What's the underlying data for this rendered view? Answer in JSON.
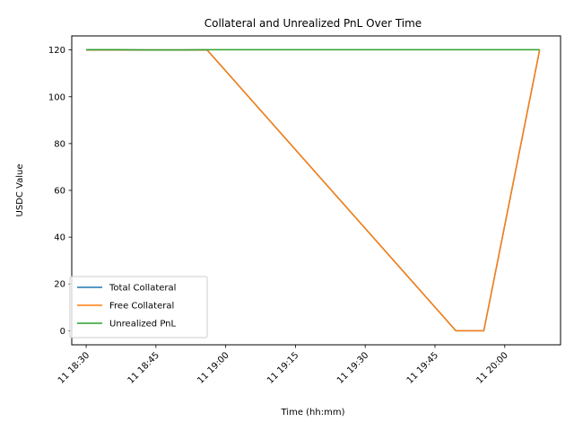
{
  "chart_data": {
    "type": "line",
    "title": "Collateral and Unrealized PnL Over Time",
    "xlabel": "Time (hh:mm)",
    "ylabel": "USDC Value",
    "x_ticks": [
      "11 18:30",
      "11 18:45",
      "11 19:00",
      "11 19:15",
      "11 19:30",
      "11 19:45",
      "11 20:00"
    ],
    "x_tick_minutes": [
      0,
      15,
      30,
      45,
      60,
      75,
      90
    ],
    "xlim_minutes": [
      -3.1,
      102
    ],
    "y_ticks": [
      0,
      20,
      40,
      60,
      80,
      100,
      120
    ],
    "ylim": [
      -6,
      126
    ],
    "legend_position": "lower left",
    "series": [
      {
        "name": "Total Collateral",
        "color": "#1f77b4",
        "x_minutes": [
          0,
          26,
          79.5,
          85.5,
          97.5
        ],
        "values": [
          120,
          120,
          0,
          0,
          120
        ]
      },
      {
        "name": "Free Collateral",
        "color": "#ff7f0e",
        "x_minutes": [
          0,
          26,
          79.5,
          85.5,
          97.5
        ],
        "values": [
          120,
          120,
          0,
          0,
          120
        ]
      },
      {
        "name": "Unrealized PnL",
        "color": "#2ca02c",
        "x_minutes": [
          0,
          7,
          13,
          20,
          26,
          40,
          60,
          80,
          97.5
        ],
        "values": [
          120.1,
          120.1,
          120.0,
          120.0,
          120.1,
          120.1,
          120.1,
          120.1,
          120.1
        ]
      }
    ]
  }
}
